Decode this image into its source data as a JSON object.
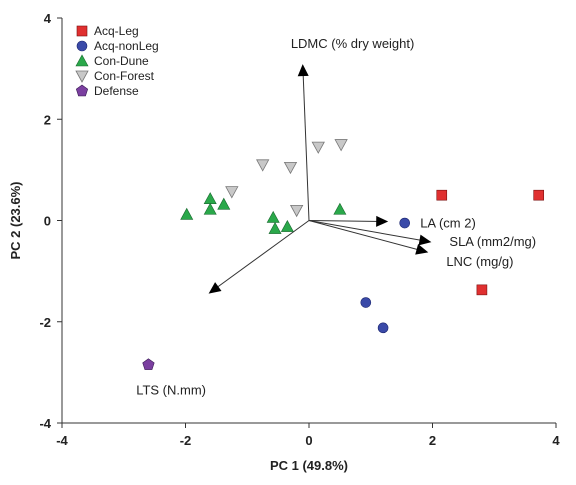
{
  "chart_data": {
    "type": "scatter",
    "title": "",
    "xlabel": "PC 1 (49.8%)",
    "ylabel": "PC 2 (23.6%)",
    "xlim": [
      -4,
      4
    ],
    "ylim": [
      -4,
      4
    ],
    "x_ticks": [
      -4,
      -2,
      0,
      2,
      4
    ],
    "y_ticks": [
      -4,
      -2,
      0,
      2,
      4
    ],
    "grid": false,
    "legend_position": "top-left",
    "series": [
      {
        "name": "Acq-Leg",
        "marker": "square",
        "color": "#e03030",
        "points": [
          [
            2.15,
            0.5
          ],
          [
            3.72,
            0.5
          ],
          [
            2.8,
            -1.37
          ]
        ]
      },
      {
        "name": "Acq-nonLeg",
        "marker": "circle",
        "color": "#3a4aa8",
        "points": [
          [
            1.55,
            -0.05
          ],
          [
            0.92,
            -1.62
          ],
          [
            1.2,
            -2.12
          ]
        ]
      },
      {
        "name": "Con-Dune",
        "marker": "triangle-up",
        "color": "#2aa84a",
        "points": [
          [
            -1.98,
            0.12
          ],
          [
            -1.6,
            0.43
          ],
          [
            -1.6,
            0.22
          ],
          [
            -1.38,
            0.32
          ],
          [
            -0.58,
            0.06
          ],
          [
            -0.55,
            -0.16
          ],
          [
            -0.35,
            -0.12
          ],
          [
            0.5,
            0.22
          ]
        ]
      },
      {
        "name": "Con-Forest",
        "marker": "triangle-down",
        "color": "#c8c8c8",
        "points": [
          [
            -1.25,
            0.57
          ],
          [
            -0.75,
            1.1
          ],
          [
            -0.3,
            1.05
          ],
          [
            0.15,
            1.45
          ],
          [
            0.52,
            1.5
          ],
          [
            -0.2,
            0.2
          ]
        ]
      },
      {
        "name": "Defense",
        "marker": "pentagon",
        "color": "#7b3fa0",
        "points": [
          [
            -2.6,
            -2.85
          ]
        ]
      }
    ],
    "vectors": [
      {
        "label": "LDMC (% dry weight)",
        "x": -0.1,
        "y": 3.05
      },
      {
        "label": "LA (cm 2)",
        "x": 1.25,
        "y": -0.02
      },
      {
        "label": "SLA (mm2/mg)",
        "x": 1.95,
        "y": -0.42
      },
      {
        "label": "LNC (mg/g)",
        "x": 1.9,
        "y": -0.62
      },
      {
        "label": "LTS (N.mm)",
        "x": -1.6,
        "y": -1.42
      }
    ]
  }
}
